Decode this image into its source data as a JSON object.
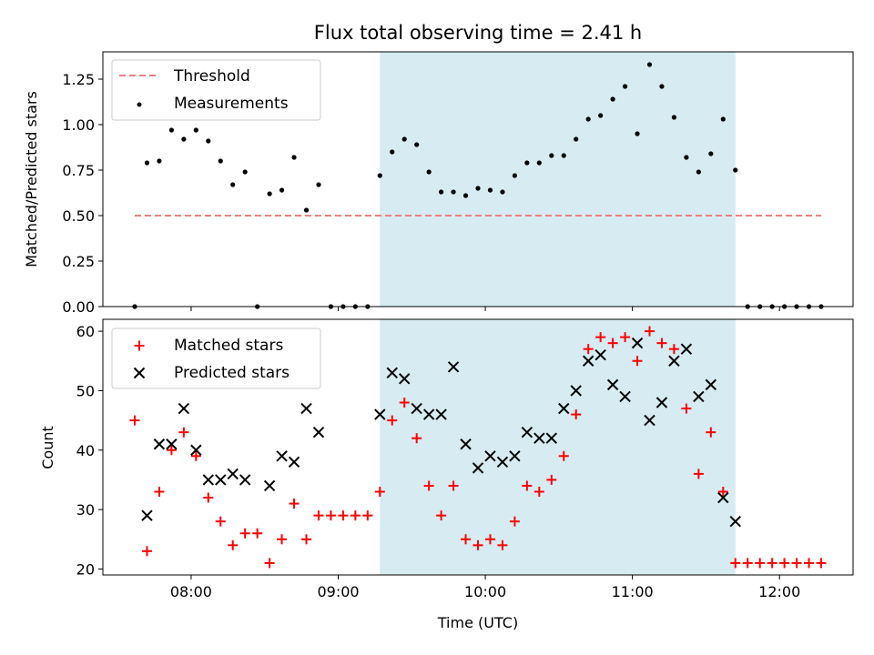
{
  "chart_data": [
    {
      "type": "scatter",
      "title": "Flux total observing time = 2.41 h",
      "ylabel": "Matched/Predicted stars",
      "xlabel": "",
      "ylim": [
        0,
        1.4
      ],
      "xlim": [
        "07:24",
        "12:30"
      ],
      "yticks": [
        "0.00",
        "0.25",
        "0.50",
        "0.75",
        "1.00",
        "1.25"
      ],
      "ytick_values": [
        0,
        0.25,
        0.5,
        0.75,
        1.0,
        1.25
      ],
      "legend_position": "top-left",
      "grid": false,
      "shaded_interval": {
        "start": "09:17",
        "end": "11:42",
        "color": "#add8e6"
      },
      "threshold": {
        "name": "Threshold",
        "value": 0.5,
        "x_start": "07:37",
        "x_end": "12:17",
        "color": "#f08080"
      },
      "series": [
        {
          "name": "Measurements",
          "color": "#000000",
          "x": [
            "07:37",
            "07:42",
            "07:47",
            "07:52",
            "07:57",
            "08:02",
            "08:07",
            "08:12",
            "08:17",
            "08:22",
            "08:27",
            "08:32",
            "08:37",
            "08:42",
            "08:47",
            "08:52",
            "08:57",
            "09:02",
            "09:07",
            "09:12",
            "09:17",
            "09:22",
            "09:27",
            "09:32",
            "09:37",
            "09:42",
            "09:47",
            "09:52",
            "09:57",
            "10:02",
            "10:07",
            "10:12",
            "10:17",
            "10:22",
            "10:27",
            "10:32",
            "10:37",
            "10:42",
            "10:47",
            "10:52",
            "10:57",
            "11:02",
            "11:07",
            "11:12",
            "11:17",
            "11:22",
            "11:27",
            "11:32",
            "11:37",
            "11:42",
            "11:47",
            "11:52",
            "11:57",
            "12:02",
            "12:07",
            "12:12",
            "12:17"
          ],
          "values": [
            0.0,
            0.79,
            0.8,
            0.97,
            0.92,
            0.97,
            0.91,
            0.8,
            0.67,
            0.74,
            0.0,
            0.62,
            0.64,
            0.82,
            0.53,
            0.67,
            0.0,
            0.0,
            0.0,
            0.0,
            0.72,
            0.85,
            0.92,
            0.89,
            0.74,
            0.63,
            0.63,
            0.61,
            0.65,
            0.64,
            0.63,
            0.72,
            0.79,
            0.79,
            0.83,
            0.83,
            0.92,
            1.03,
            1.05,
            1.14,
            1.21,
            0.95,
            1.33,
            1.21,
            1.04,
            0.82,
            0.74,
            0.84,
            1.03,
            0.75,
            0.0,
            0.0,
            0.0,
            0.0,
            0.0,
            0.0,
            0.0
          ]
        }
      ]
    },
    {
      "type": "scatter",
      "title": "",
      "ylabel": "Count",
      "xlabel": "Time (UTC)",
      "ylim": [
        19,
        62
      ],
      "xlim": [
        "07:24",
        "12:30"
      ],
      "yticks": [
        "20",
        "30",
        "40",
        "50",
        "60"
      ],
      "ytick_values": [
        20,
        30,
        40,
        50,
        60
      ],
      "xticks": [
        "08:00",
        "09:00",
        "10:00",
        "11:00",
        "12:00"
      ],
      "legend_position": "top-left",
      "grid": false,
      "shaded_interval": {
        "start": "09:17",
        "end": "11:42",
        "color": "#add8e6"
      },
      "series": [
        {
          "name": "Matched stars",
          "marker": "plus",
          "color": "#ff0000",
          "x": [
            "07:37",
            "07:42",
            "07:47",
            "07:52",
            "07:57",
            "08:02",
            "08:07",
            "08:12",
            "08:17",
            "08:22",
            "08:27",
            "08:32",
            "08:37",
            "08:42",
            "08:47",
            "08:52",
            "08:57",
            "09:02",
            "09:07",
            "09:12",
            "09:17",
            "09:22",
            "09:27",
            "09:32",
            "09:37",
            "09:42",
            "09:47",
            "09:52",
            "09:57",
            "10:02",
            "10:07",
            "10:12",
            "10:17",
            "10:22",
            "10:27",
            "10:32",
            "10:37",
            "10:42",
            "10:47",
            "10:52",
            "10:57",
            "11:02",
            "11:07",
            "11:12",
            "11:17",
            "11:22",
            "11:27",
            "11:32",
            "11:37",
            "11:42",
            "11:47",
            "11:52",
            "11:57",
            "12:02",
            "12:07",
            "12:12",
            "12:17"
          ],
          "values": [
            45,
            23,
            33,
            40,
            43,
            39,
            32,
            28,
            24,
            26,
            26,
            21,
            25,
            31,
            25,
            29,
            29,
            29,
            29,
            29,
            33,
            45,
            48,
            42,
            34,
            29,
            34,
            25,
            24,
            25,
            24,
            28,
            34,
            33,
            35,
            39,
            46,
            57,
            59,
            58,
            59,
            55,
            60,
            58,
            57,
            47,
            36,
            43,
            33,
            21,
            21,
            21,
            21,
            21,
            21,
            21,
            21
          ]
        },
        {
          "name": "Predicted stars",
          "marker": "x",
          "color": "#000000",
          "x": [
            "07:42",
            "07:47",
            "07:52",
            "07:57",
            "08:02",
            "08:07",
            "08:12",
            "08:17",
            "08:22",
            "08:32",
            "08:37",
            "08:42",
            "08:47",
            "08:52",
            "09:17",
            "09:22",
            "09:27",
            "09:32",
            "09:37",
            "09:42",
            "09:47",
            "09:52",
            "09:57",
            "10:02",
            "10:07",
            "10:12",
            "10:17",
            "10:22",
            "10:27",
            "10:32",
            "10:37",
            "10:42",
            "10:47",
            "10:52",
            "10:57",
            "11:02",
            "11:07",
            "11:12",
            "11:17",
            "11:22",
            "11:27",
            "11:32",
            "11:37",
            "11:42"
          ],
          "values": [
            29,
            41,
            41,
            47,
            40,
            35,
            35,
            36,
            35,
            34,
            39,
            38,
            47,
            43,
            46,
            53,
            52,
            47,
            46,
            46,
            54,
            41,
            37,
            39,
            38,
            39,
            43,
            42,
            42,
            47,
            50,
            55,
            56,
            51,
            49,
            58,
            45,
            48,
            55,
            57,
            49,
            51,
            32,
            28
          ]
        }
      ]
    }
  ]
}
